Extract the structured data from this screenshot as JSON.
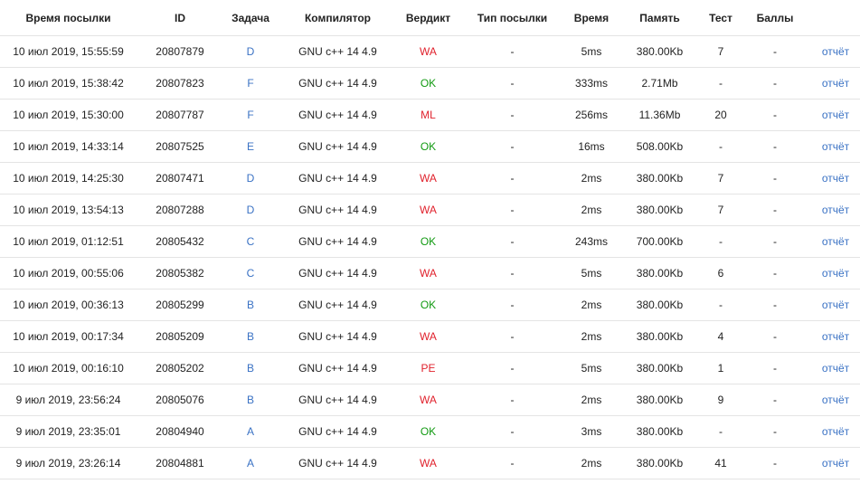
{
  "header": [
    "Время посылки",
    "ID",
    "Задача",
    "Компилятор",
    "Вердикт",
    "Тип посылки",
    "Время",
    "Память",
    "Тест",
    "Баллы",
    ""
  ],
  "colors": {
    "link": "#3a72c4",
    "ok": "#129a12",
    "error": "#e0212c"
  },
  "rows": [
    {
      "time": "10 июл 2019, 15:55:59",
      "id": "20807879",
      "task": "D",
      "compiler": "GNU c++ 14 4.9",
      "verdict": "WA",
      "type": "-",
      "runtime": "5ms",
      "memory": "380.00Kb",
      "test": "7",
      "score": "-",
      "report": "отчёт"
    },
    {
      "time": "10 июл 2019, 15:38:42",
      "id": "20807823",
      "task": "F",
      "compiler": "GNU c++ 14 4.9",
      "verdict": "OK",
      "type": "-",
      "runtime": "333ms",
      "memory": "2.71Mb",
      "test": "-",
      "score": "-",
      "report": "отчёт"
    },
    {
      "time": "10 июл 2019, 15:30:00",
      "id": "20807787",
      "task": "F",
      "compiler": "GNU c++ 14 4.9",
      "verdict": "ML",
      "type": "-",
      "runtime": "256ms",
      "memory": "11.36Mb",
      "test": "20",
      "score": "-",
      "report": "отчёт"
    },
    {
      "time": "10 июл 2019, 14:33:14",
      "id": "20807525",
      "task": "E",
      "compiler": "GNU c++ 14 4.9",
      "verdict": "OK",
      "type": "-",
      "runtime": "16ms",
      "memory": "508.00Kb",
      "test": "-",
      "score": "-",
      "report": "отчёт"
    },
    {
      "time": "10 июл 2019, 14:25:30",
      "id": "20807471",
      "task": "D",
      "compiler": "GNU c++ 14 4.9",
      "verdict": "WA",
      "type": "-",
      "runtime": "2ms",
      "memory": "380.00Kb",
      "test": "7",
      "score": "-",
      "report": "отчёт"
    },
    {
      "time": "10 июл 2019, 13:54:13",
      "id": "20807288",
      "task": "D",
      "compiler": "GNU c++ 14 4.9",
      "verdict": "WA",
      "type": "-",
      "runtime": "2ms",
      "memory": "380.00Kb",
      "test": "7",
      "score": "-",
      "report": "отчёт"
    },
    {
      "time": "10 июл 2019, 01:12:51",
      "id": "20805432",
      "task": "C",
      "compiler": "GNU c++ 14 4.9",
      "verdict": "OK",
      "type": "-",
      "runtime": "243ms",
      "memory": "700.00Kb",
      "test": "-",
      "score": "-",
      "report": "отчёт"
    },
    {
      "time": "10 июл 2019, 00:55:06",
      "id": "20805382",
      "task": "C",
      "compiler": "GNU c++ 14 4.9",
      "verdict": "WA",
      "type": "-",
      "runtime": "5ms",
      "memory": "380.00Kb",
      "test": "6",
      "score": "-",
      "report": "отчёт"
    },
    {
      "time": "10 июл 2019, 00:36:13",
      "id": "20805299",
      "task": "B",
      "compiler": "GNU c++ 14 4.9",
      "verdict": "OK",
      "type": "-",
      "runtime": "2ms",
      "memory": "380.00Kb",
      "test": "-",
      "score": "-",
      "report": "отчёт"
    },
    {
      "time": "10 июл 2019, 00:17:34",
      "id": "20805209",
      "task": "B",
      "compiler": "GNU c++ 14 4.9",
      "verdict": "WA",
      "type": "-",
      "runtime": "2ms",
      "memory": "380.00Kb",
      "test": "4",
      "score": "-",
      "report": "отчёт"
    },
    {
      "time": "10 июл 2019, 00:16:10",
      "id": "20805202",
      "task": "B",
      "compiler": "GNU c++ 14 4.9",
      "verdict": "PE",
      "type": "-",
      "runtime": "5ms",
      "memory": "380.00Kb",
      "test": "1",
      "score": "-",
      "report": "отчёт"
    },
    {
      "time": "9 июл 2019, 23:56:24",
      "id": "20805076",
      "task": "B",
      "compiler": "GNU c++ 14 4.9",
      "verdict": "WA",
      "type": "-",
      "runtime": "2ms",
      "memory": "380.00Kb",
      "test": "9",
      "score": "-",
      "report": "отчёт"
    },
    {
      "time": "9 июл 2019, 23:35:01",
      "id": "20804940",
      "task": "A",
      "compiler": "GNU c++ 14 4.9",
      "verdict": "OK",
      "type": "-",
      "runtime": "3ms",
      "memory": "380.00Kb",
      "test": "-",
      "score": "-",
      "report": "отчёт"
    },
    {
      "time": "9 июл 2019, 23:26:14",
      "id": "20804881",
      "task": "A",
      "compiler": "GNU c++ 14 4.9",
      "verdict": "WA",
      "type": "-",
      "runtime": "2ms",
      "memory": "380.00Kb",
      "test": "41",
      "score": "-",
      "report": "отчёт"
    }
  ]
}
